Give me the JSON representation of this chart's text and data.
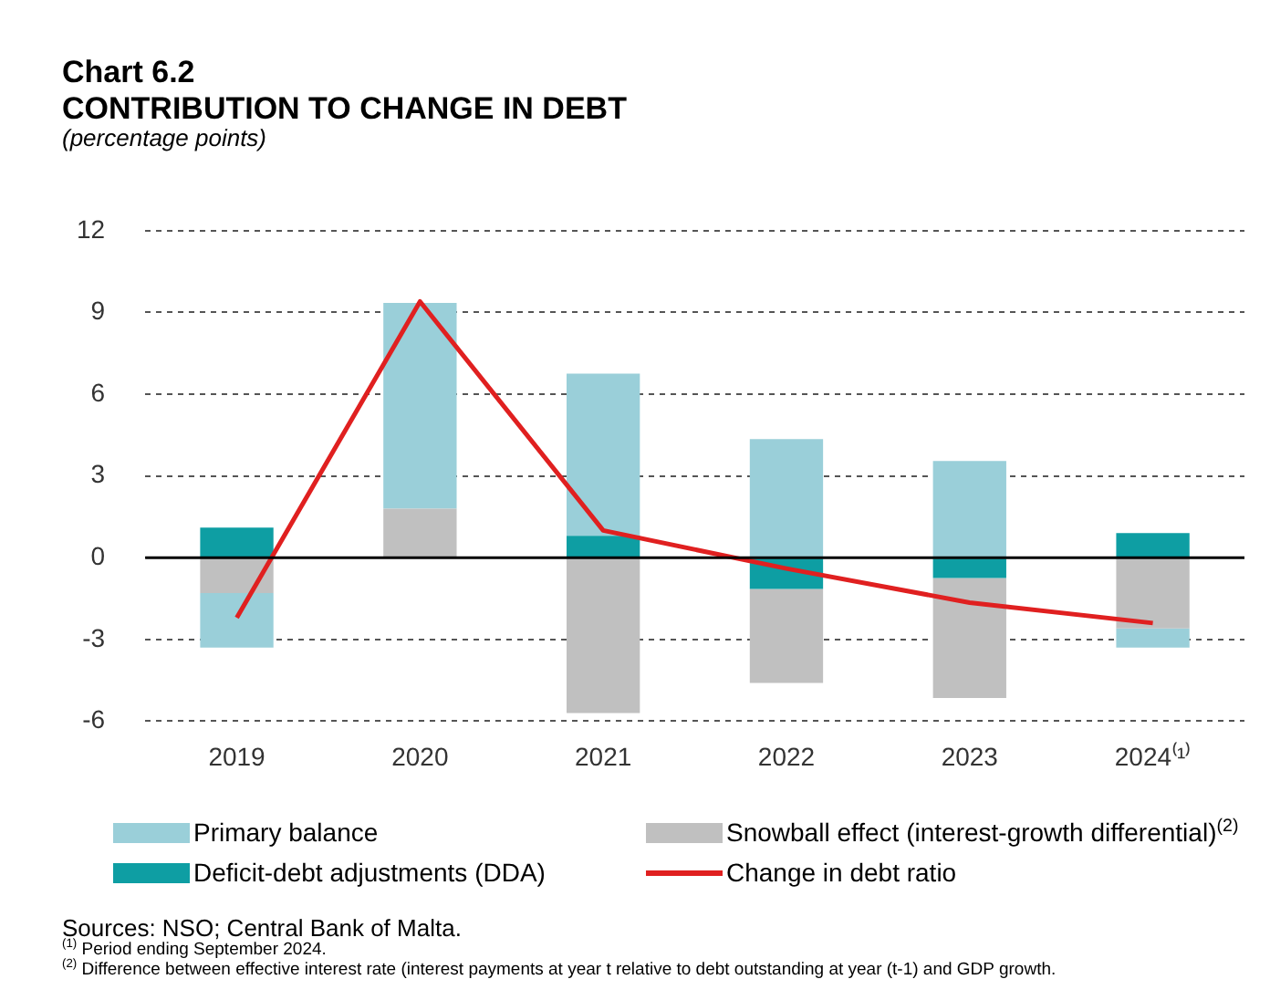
{
  "chart_data": {
    "type": "bar",
    "title": "Chart 6.2",
    "subtitle": "CONTRIBUTION TO CHANGE IN DEBT",
    "ylabel": "(percentage points)",
    "categories": [
      "2019",
      "2020",
      "2021",
      "2022",
      "2023",
      "2024⁽¹⁾"
    ],
    "stacked": true,
    "series": [
      {
        "name": "Deficit-debt adjustments (DDA)",
        "color": "#0e9ea3",
        "values": [
          1.1,
          0,
          0.8,
          -1.15,
          -0.75,
          0.9
        ]
      },
      {
        "name": "Snowball effect (interest-growth differential)$^{(2)}$",
        "color": "#c0c0c0",
        "values": [
          -1.3,
          1.8,
          -5.7,
          -3.45,
          -4.4,
          -2.6
        ]
      },
      {
        "name": "Primary balance",
        "color": "#9acfd9",
        "values": [
          -2.0,
          7.55,
          5.95,
          4.35,
          3.55,
          -0.7
        ]
      },
      {
        "name": "Change in debt ratio",
        "type": "line",
        "color": "#e02020",
        "values": [
          -2.2,
          9.4,
          1.0,
          -0.4,
          -1.65,
          -2.4
        ]
      }
    ],
    "ylim": [
      -6,
      12
    ],
    "yticks": [
      -6,
      -3,
      0,
      3,
      6,
      9,
      12
    ],
    "ref_lines": [
      {
        "axis": "y",
        "value": 0,
        "color": "#000000",
        "line_style": "solid"
      }
    ],
    "grid": "y",
    "legend": "bottom",
    "marker": "none",
    "line_style": "solid",
    "annotations": [
      "Sources: NSO; Central Bank of Malta.",
      "$^{(1)}$ Period ending September 2024.",
      "$^{(2)}$ Difference between effective interest rate (interest payments at year t relative to debt outstanding at year (t-1) and GDP growth."
    ]
  }
}
